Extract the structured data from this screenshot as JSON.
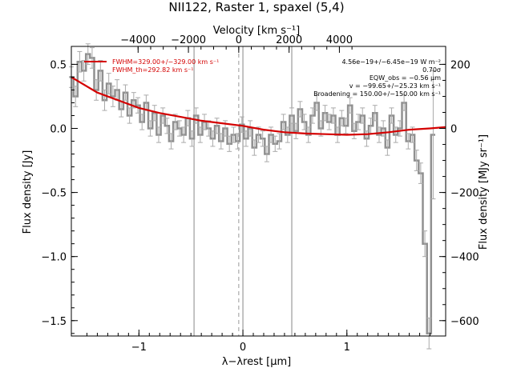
{
  "title": "NII122, Raster 1, spaxel (5,4)",
  "chart_data": {
    "type": "line",
    "title": "NII122, Raster 1, spaxel (5,4)",
    "xlabel": "λ−λrest [μm]",
    "ylabel": "Flux density [Jy]",
    "xlim": [
      -1.65,
      1.95
    ],
    "ylim": [
      -1.62,
      0.64
    ],
    "x_ticks": [
      -1,
      0,
      1
    ],
    "y_ticks": [
      0.5,
      0.0,
      -0.5,
      -1.0,
      -1.5
    ],
    "x_tick_labels": [
      "−1",
      "0",
      "1"
    ],
    "y_tick_labels": [
      "0.5",
      "0.0",
      "−0.5",
      "−1.0",
      "−1.5"
    ],
    "top_axis": {
      "label": "Velocity [km s⁻¹]",
      "ticks": [
        -4000,
        -2000,
        0,
        2000,
        4000
      ],
      "tick_labels": [
        "−4000",
        "−2000",
        "0",
        "2000",
        "4000"
      ]
    },
    "right_axis": {
      "label": "Flux density [MJy sr⁻¹]",
      "ticks": [
        200,
        0,
        -200,
        -400,
        -600
      ],
      "tick_labels": [
        "200",
        "0",
        "−200",
        "−400",
        "−600"
      ]
    },
    "vertical_lines": [
      -0.47,
      0.0,
      0.47
    ],
    "dashed_line": -0.04,
    "series": [
      {
        "name": "data",
        "color": "#909090",
        "x": [
          -1.65,
          -1.61,
          -1.57,
          -1.53,
          -1.49,
          -1.45,
          -1.41,
          -1.37,
          -1.33,
          -1.29,
          -1.25,
          -1.21,
          -1.17,
          -1.13,
          -1.09,
          -1.05,
          -1.01,
          -0.97,
          -0.93,
          -0.89,
          -0.85,
          -0.81,
          -0.77,
          -0.73,
          -0.69,
          -0.65,
          -0.61,
          -0.57,
          -0.53,
          -0.49,
          -0.45,
          -0.41,
          -0.37,
          -0.33,
          -0.29,
          -0.25,
          -0.21,
          -0.17,
          -0.13,
          -0.09,
          -0.05,
          -0.01,
          0.03,
          0.07,
          0.11,
          0.15,
          0.19,
          0.23,
          0.27,
          0.31,
          0.35,
          0.39,
          0.43,
          0.47,
          0.51,
          0.55,
          0.59,
          0.63,
          0.67,
          0.71,
          0.75,
          0.79,
          0.83,
          0.87,
          0.91,
          0.95,
          0.99,
          1.03,
          1.07,
          1.11,
          1.15,
          1.19,
          1.23,
          1.27,
          1.31,
          1.35,
          1.39,
          1.43,
          1.47,
          1.51,
          1.55,
          1.59,
          1.63,
          1.67,
          1.71,
          1.75,
          1.79,
          1.83
        ],
        "y": [
          0.4,
          0.25,
          0.52,
          0.45,
          0.58,
          0.55,
          0.3,
          0.45,
          0.22,
          0.35,
          0.25,
          0.3,
          0.15,
          0.28,
          0.1,
          0.22,
          0.18,
          0.05,
          0.2,
          0.0,
          0.12,
          -0.05,
          0.1,
          0.02,
          -0.1,
          0.05,
          0.0,
          -0.05,
          0.08,
          -0.08,
          0.1,
          -0.05,
          0.05,
          0.0,
          -0.08,
          0.02,
          -0.1,
          0.0,
          -0.12,
          -0.05,
          -0.1,
          0.03,
          -0.08,
          0.0,
          -0.15,
          -0.05,
          -0.08,
          -0.2,
          -0.05,
          -0.12,
          -0.1,
          0.05,
          -0.05,
          0.1,
          -0.02,
          0.15,
          0.05,
          -0.05,
          0.1,
          0.2,
          0.0,
          0.12,
          0.05,
          0.1,
          -0.05,
          0.08,
          0.02,
          0.18,
          -0.02,
          0.05,
          0.1,
          -0.08,
          0.02,
          0.12,
          -0.05,
          0.0,
          -0.15,
          0.1,
          -0.05,
          0.0,
          0.2,
          -0.1,
          -0.05,
          -0.25,
          -0.35,
          -0.9,
          -1.6,
          -0.05
        ],
        "errors": [
          0.08,
          0.08,
          0.08,
          0.08,
          0.08,
          0.08,
          0.08,
          0.08,
          0.08,
          0.08,
          0.08,
          0.08,
          0.06,
          0.06,
          0.06,
          0.06,
          0.06,
          0.06,
          0.06,
          0.06,
          0.06,
          0.06,
          0.06,
          0.06,
          0.06,
          0.06,
          0.06,
          0.06,
          0.06,
          0.06,
          0.06,
          0.06,
          0.06,
          0.06,
          0.06,
          0.06,
          0.06,
          0.06,
          0.06,
          0.06,
          0.06,
          0.06,
          0.06,
          0.06,
          0.06,
          0.06,
          0.06,
          0.06,
          0.06,
          0.06,
          0.06,
          0.06,
          0.06,
          0.06,
          0.06,
          0.06,
          0.06,
          0.06,
          0.06,
          0.06,
          0.06,
          0.06,
          0.06,
          0.06,
          0.06,
          0.06,
          0.06,
          0.06,
          0.06,
          0.06,
          0.06,
          0.06,
          0.06,
          0.06,
          0.06,
          0.06,
          0.06,
          0.06,
          0.06,
          0.06,
          0.06,
          0.06,
          0.06,
          0.08,
          0.08,
          0.1,
          0.12,
          0.5
        ]
      },
      {
        "name": "fit",
        "color": "#d40000",
        "x": [
          -1.65,
          -1.4,
          -1.2,
          -1.0,
          -0.8,
          -0.6,
          -0.4,
          -0.2,
          0.0,
          0.2,
          0.4,
          0.6,
          0.8,
          1.0,
          1.2,
          1.4,
          1.6,
          1.8,
          1.95
        ],
        "y": [
          0.4,
          0.28,
          0.22,
          0.16,
          0.12,
          0.09,
          0.06,
          0.04,
          0.02,
          -0.01,
          -0.03,
          -0.04,
          -0.045,
          -0.05,
          -0.045,
          -0.03,
          -0.01,
          0.0,
          0.01
        ]
      }
    ]
  },
  "annotations_left": [
    "FWHM=329.00+/−329.00 km s⁻¹",
    "FWHM_th=292.82 km s⁻¹"
  ],
  "annotations_right": [
    "4.56e−19+/−6.45e−19 W m⁻²",
    "0.70σ",
    "EQW_obs = −0.56 μm",
    "v = −99.65+/−25.23 km s⁻¹",
    "Broadening = 150.00+/−150.00 km s⁻¹"
  ]
}
